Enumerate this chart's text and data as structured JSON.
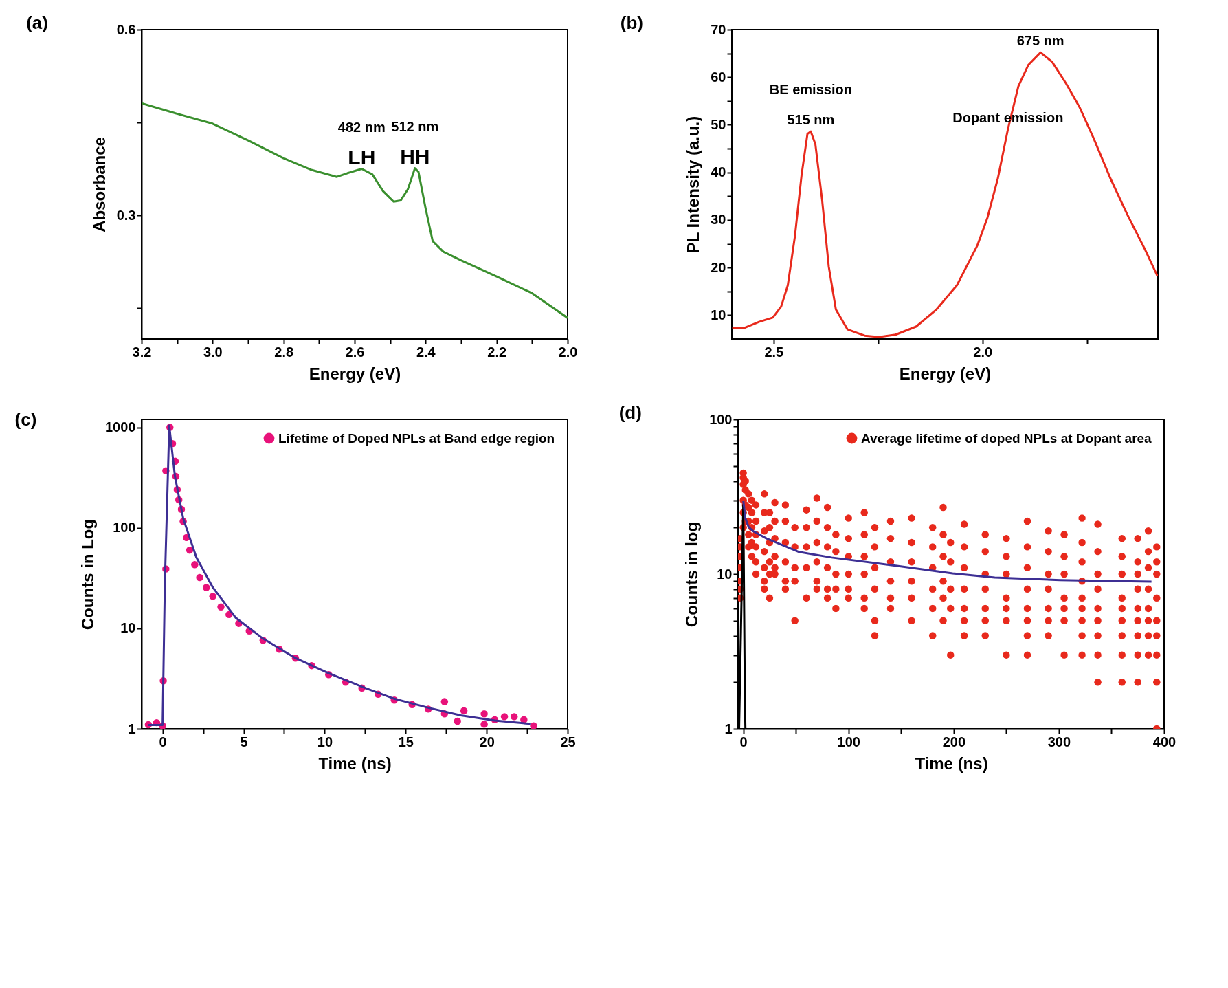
{
  "chart_data": [
    {
      "type": "line",
      "title": "(a)",
      "xlabel": "Energy (eV)",
      "ylabel": "Absorbance",
      "xlim": [
        3.2,
        2.0
      ],
      "ylim": [
        0.1,
        0.6
      ],
      "xticks": [
        3.2,
        {
          "value": 3.1,
          "label": null
        },
        {
          "value": 3,
          "label": "3.0"
        },
        {
          "value": 2.9,
          "label": null
        },
        2.8,
        {
          "value": 2.7,
          "label": null
        },
        2.6,
        {
          "value": 2.5,
          "label": null
        },
        2.4,
        {
          "value": 2.3,
          "label": null
        },
        2.2,
        {
          "value": 2.1,
          "label": null
        },
        {
          "value": 2,
          "label": "2.0"
        }
      ],
      "yticks": [
        {
          "value": 0.15,
          "label": null
        },
        0.3,
        {
          "value": 0.45,
          "label": null
        },
        0.6
      ],
      "series": [
        {
          "color": "#3a8f2e",
          "x": [
            3.2,
            3.1,
            3.0,
            2.9,
            2.8,
            2.72,
            2.65,
            2.62,
            2.58,
            2.55,
            2.52,
            2.49,
            2.47,
            2.45,
            2.43,
            2.42,
            2.4,
            2.38,
            2.35,
            2.3,
            2.2,
            2.1,
            2.0
          ],
          "values": [
            0.481,
            0.464,
            0.448,
            0.421,
            0.392,
            0.373,
            0.362,
            0.368,
            0.375,
            0.366,
            0.339,
            0.322,
            0.324,
            0.342,
            0.376,
            0.37,
            0.311,
            0.258,
            0.241,
            0.227,
            0.201,
            0.174,
            0.134
          ]
        }
      ],
      "annotations": [
        {
          "text": "LH",
          "x": 2.58,
          "y": 0.375
        },
        {
          "text": "482 nm",
          "x": 2.58,
          "y": 0.375
        },
        {
          "text": "HH",
          "x": 2.43,
          "y": 0.376
        },
        {
          "text": "512 nm",
          "x": 2.43,
          "y": 0.376
        }
      ]
    },
    {
      "type": "line",
      "title": "(b)",
      "xlabel": "Energy (eV)",
      "ylabel": "PL Intensity (a.u.)",
      "xlim": [
        2.6,
        1.58
      ],
      "ylim": [
        5,
        70
      ],
      "xticks": [
        2.5,
        {
          "value": 2.25,
          "label": null
        },
        {
          "value": 2,
          "label": "2.0"
        },
        {
          "value": 1.75,
          "label": null
        }
      ],
      "yticks": [
        10,
        {
          "value": 15,
          "label": null
        },
        20,
        {
          "value": 25,
          "label": null
        },
        30,
        {
          "value": 35,
          "label": null
        },
        40,
        {
          "value": 45,
          "label": null
        },
        50,
        {
          "value": 55,
          "label": null
        },
        60,
        {
          "value": 65,
          "label": null
        },
        70
      ],
      "series": [
        {
          "color": "#e8291c",
          "x": [
            2.599,
            2.568,
            2.535,
            2.502,
            2.482,
            2.466,
            2.449,
            2.433,
            2.419,
            2.411,
            2.4,
            2.384,
            2.368,
            2.351,
            2.323,
            2.282,
            2.249,
            2.208,
            2.159,
            2.11,
            2.061,
            2.012,
            1.988,
            1.963,
            1.939,
            1.914,
            1.89,
            1.861,
            1.833,
            1.8,
            1.767,
            1.734,
            1.694,
            1.653,
            1.612,
            1.581
          ],
          "values": [
            7.3,
            7.4,
            8.6,
            9.5,
            11.8,
            16.3,
            26.6,
            39.5,
            48.1,
            48.6,
            45.9,
            34.3,
            20.2,
            11.2,
            7.0,
            5.7,
            5.4,
            5.9,
            7.6,
            11.2,
            16.3,
            24.7,
            30.5,
            38.8,
            49.1,
            58.1,
            62.6,
            65.2,
            63.2,
            58.7,
            53.6,
            47.2,
            38.8,
            31.1,
            24.0,
            18.2
          ]
        }
      ],
      "annotations": [
        {
          "text": "515 nm",
          "x": 2.411,
          "y": 48.6
        },
        {
          "text": "BE emission",
          "x": 2.411,
          "y": 48.6
        },
        {
          "text": "675 nm",
          "x": 1.861,
          "y": 65.2
        },
        {
          "text": "Dopant emission",
          "x": 1.939,
          "y": 49.1
        }
      ]
    },
    {
      "type": "scatter",
      "title": "(c)",
      "xlabel": "Time (ns)",
      "ylabel": "Counts in Log",
      "log": true,
      "legend": "top right",
      "xlim": [
        -1.3,
        25
      ],
      "ylim": [
        1,
        1200
      ],
      "xticks": [
        0,
        {
          "value": 2.5,
          "label": null
        },
        5,
        {
          "value": 7.5,
          "label": null
        },
        10,
        {
          "value": 12.5,
          "label": null
        },
        15,
        {
          "value": 17.5,
          "label": null
        },
        20,
        {
          "value": 22.5,
          "label": null
        },
        25
      ],
      "yticks": [
        1,
        10,
        100,
        1000
      ],
      "series": [
        {
          "name": "Lifetime of Doped NPLs at Band edge region",
          "color": "#e8127a",
          "marker": "circle",
          "x": [
            -0.88,
            -0.37,
            0,
            0.04,
            0.2,
            0.2,
            0.45,
            0.61,
            0.78,
            0.82,
            0.9,
            1.0,
            1.16,
            1.27,
            1.47,
            1.67,
            1.98,
            2.29,
            2.7,
            3.1,
            3.6,
            4.1,
            4.7,
            5.35,
            6.2,
            7.2,
            8.2,
            9.2,
            10.25,
            11.3,
            12.3,
            13.3,
            14.3,
            15.4,
            16.4,
            17.4,
            17.4,
            18.2,
            18.6,
            19.85,
            19.85,
            20.5,
            21.1,
            21.7,
            22.3,
            22.9
          ],
          "values": [
            1.1,
            1.15,
            1.07,
            3.0,
            39,
            370,
            1000,
            690,
            460,
            325,
            240,
            190,
            153,
            116,
            80,
            60,
            43,
            32,
            25.5,
            20.8,
            16.3,
            13.7,
            11.2,
            9.4,
            7.6,
            6.2,
            5.05,
            4.25,
            3.46,
            2.91,
            2.54,
            2.21,
            1.93,
            1.74,
            1.57,
            1.86,
            1.41,
            1.19,
            1.51,
            1.41,
            1.11,
            1.23,
            1.32,
            1.32,
            1.23,
            1.07
          ]
        },
        {
          "type": "line",
          "color": "#3d2f94",
          "x": [
            -0.88,
            0,
            0.14,
            0.41,
            0.76,
            1.27,
            2.08,
            3.1,
            4.5,
            6.2,
            8.2,
            10.25,
            12.3,
            14.3,
            16.4,
            18.4,
            20.5,
            22.7
          ],
          "values": [
            1.09,
            1.09,
            29,
            1040,
            325,
            124,
            51,
            25.5,
            12.8,
            7.9,
            5.05,
            3.58,
            2.62,
            1.99,
            1.62,
            1.36,
            1.21,
            1.12
          ]
        }
      ]
    },
    {
      "type": "scatter",
      "title": "(d)",
      "xlabel": "Time (ns)",
      "ylabel": "Counts in log",
      "log": true,
      "legend": "top right",
      "xlim": [
        -5,
        400
      ],
      "ylim": [
        1,
        100
      ],
      "xticks": [
        0,
        {
          "value": 50,
          "label": null
        },
        100,
        {
          "value": 150,
          "label": null
        },
        200,
        {
          "value": 250,
          "label": null
        },
        300,
        {
          "value": 350,
          "label": null
        },
        400
      ],
      "yticks": [
        1,
        {
          "value": 2,
          "label": null
        },
        {
          "value": 3,
          "label": null
        },
        {
          "value": 4,
          "label": null
        },
        {
          "value": 5,
          "label": null
        },
        {
          "value": 6,
          "label": null
        },
        {
          "value": 7,
          "label": null
        },
        {
          "value": 8,
          "label": null
        },
        {
          "value": 9,
          "label": null
        },
        10,
        {
          "value": 20,
          "label": null
        },
        {
          "value": 30,
          "label": null
        },
        {
          "value": 40,
          "label": null
        },
        {
          "value": 50,
          "label": null
        },
        {
          "value": 60,
          "label": null
        },
        {
          "value": 70,
          "label": null
        },
        {
          "value": 80,
          "label": null
        },
        {
          "value": 90,
          "label": null
        },
        100
      ],
      "series": [
        {
          "name": "Average lifetime of doped NPLs at Dopant area",
          "color": "#e8291c",
          "marker": "circle",
          "x": [
            -3,
            -3,
            -3,
            -3,
            -3,
            -3,
            -3,
            0,
            0,
            0,
            0,
            0,
            0,
            2,
            2,
            2,
            2,
            5,
            5,
            5,
            5,
            5,
            8,
            8,
            8,
            8,
            8,
            12,
            12,
            12,
            12,
            12,
            12,
            20,
            20,
            20,
            20,
            20,
            20,
            20,
            25,
            25,
            25,
            25,
            25,
            25,
            30,
            30,
            30,
            30,
            30,
            30,
            40,
            40,
            40,
            40,
            40,
            40,
            49,
            49,
            49,
            49,
            49,
            60,
            60,
            60,
            60,
            60,
            70,
            70,
            70,
            70,
            70,
            70,
            80,
            80,
            80,
            80,
            80,
            80,
            88,
            88,
            88,
            88,
            88,
            100,
            100,
            100,
            100,
            100,
            100,
            115,
            115,
            115,
            115,
            115,
            115,
            125,
            125,
            125,
            125,
            125,
            125,
            140,
            140,
            140,
            140,
            140,
            140,
            160,
            160,
            160,
            160,
            160,
            160,
            180,
            180,
            180,
            180,
            180,
            180,
            190,
            190,
            190,
            190,
            190,
            190,
            197,
            197,
            197,
            197,
            197,
            210,
            210,
            210,
            210,
            210,
            210,
            210,
            230,
            230,
            230,
            230,
            230,
            230,
            230,
            250,
            250,
            250,
            250,
            250,
            250,
            250,
            270,
            270,
            270,
            270,
            270,
            270,
            270,
            270,
            290,
            290,
            290,
            290,
            290,
            290,
            290,
            305,
            305,
            305,
            305,
            305,
            305,
            305,
            322,
            322,
            322,
            322,
            322,
            322,
            322,
            322,
            322,
            337,
            337,
            337,
            337,
            337,
            337,
            337,
            337,
            337,
            360,
            360,
            360,
            360,
            360,
            360,
            360,
            360,
            360,
            375,
            375,
            375,
            375,
            375,
            375,
            375,
            375,
            375,
            385,
            385,
            385,
            385,
            385,
            385,
            385,
            385,
            393,
            393,
            393,
            393,
            393,
            393,
            393,
            393,
            393
          ],
          "values": [
            7,
            8,
            9,
            11,
            13,
            15,
            17,
            45,
            42,
            38,
            30,
            25,
            20,
            40,
            35,
            28,
            22,
            33,
            27,
            22,
            18,
            15,
            30,
            25,
            20,
            16,
            13,
            28,
            22,
            18,
            15,
            12,
            10,
            33,
            25,
            19,
            14,
            11,
            9,
            8,
            25,
            20,
            16,
            12,
            10,
            7,
            29,
            22,
            17,
            13,
            11,
            10,
            28,
            22,
            16,
            12,
            9,
            8,
            20,
            15,
            11,
            9,
            5,
            26,
            20,
            15,
            11,
            7,
            31,
            22,
            16,
            12,
            9,
            8,
            27,
            20,
            15,
            11,
            8,
            7,
            18,
            14,
            10,
            8,
            6,
            23,
            17,
            13,
            10,
            8,
            7,
            25,
            18,
            13,
            10,
            7,
            6,
            20,
            15,
            11,
            8,
            5,
            4,
            22,
            17,
            12,
            9,
            7,
            6,
            23,
            16,
            12,
            9,
            7,
            5,
            20,
            15,
            11,
            8,
            6,
            4,
            27,
            18,
            13,
            9,
            7,
            5,
            16,
            12,
            8,
            6,
            3,
            21,
            15,
            11,
            8,
            6,
            5,
            4,
            18,
            14,
            10,
            8,
            6,
            5,
            4,
            17,
            13,
            10,
            7,
            6,
            5,
            3,
            22,
            15,
            11,
            8,
            6,
            5,
            4,
            3,
            19,
            14,
            10,
            8,
            6,
            5,
            4,
            18,
            13,
            10,
            7,
            6,
            5,
            3,
            23,
            16,
            12,
            9,
            7,
            6,
            5,
            4,
            3,
            21,
            14,
            10,
            8,
            6,
            5,
            4,
            3,
            2,
            17,
            13,
            10,
            7,
            6,
            5,
            4,
            3,
            2,
            17,
            12,
            10,
            8,
            6,
            5,
            4,
            3,
            2,
            19,
            14,
            11,
            8,
            6,
            5,
            4,
            3,
            15,
            12,
            10,
            7,
            5,
            4,
            3,
            2,
            1
          ]
        },
        {
          "type": "line",
          "color": "#000000",
          "x": [
            -4,
            0,
            1.5,
            2
          ],
          "values": [
            1,
            28,
            1.5,
            1
          ]
        },
        {
          "type": "line",
          "color": "#3d2f94",
          "x": [
            0,
            1.9,
            5,
            9.6,
            22,
            53,
            84,
            146,
            199,
            239,
            301,
            388
          ],
          "values": [
            29.9,
            23,
            20.2,
            18.9,
            17,
            13.9,
            12.8,
            11.3,
            10.1,
            9.5,
            9.15,
            8.93
          ]
        }
      ]
    }
  ]
}
